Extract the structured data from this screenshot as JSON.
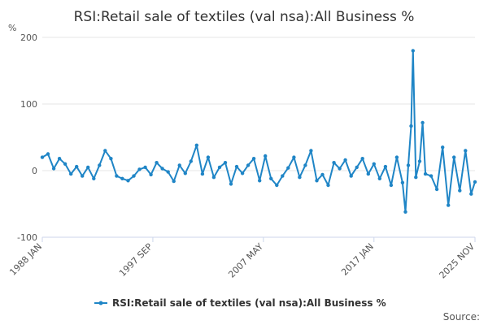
{
  "chart_data": {
    "type": "line",
    "title": "RSI:Retail sale of textiles (val nsa):All Business %",
    "ylabel": "%",
    "xlabel": "",
    "ylim": [
      -100,
      200
    ],
    "yticks": [
      200,
      100,
      0,
      -100
    ],
    "xticks": [
      "1988 JAN",
      "1997 SEP",
      "2007 MAY",
      "2017 JAN",
      "2025 NOV"
    ],
    "xrange": [
      "1988-01",
      "2025-11"
    ],
    "grid": "horizontal",
    "legend_position": "bottom",
    "color": "#1f85c6",
    "series": [
      {
        "name": "RSI:Retail sale of textiles (val nsa):All Business %",
        "x": [
          "1988-01",
          "1988-07",
          "1989-01",
          "1989-07",
          "1990-01",
          "1990-07",
          "1991-01",
          "1991-07",
          "1992-01",
          "1992-07",
          "1993-01",
          "1993-07",
          "1994-01",
          "1994-07",
          "1995-01",
          "1995-07",
          "1996-01",
          "1996-07",
          "1997-01",
          "1997-07",
          "1998-01",
          "1998-07",
          "1999-01",
          "1999-07",
          "2000-01",
          "2000-07",
          "2001-01",
          "2001-07",
          "2002-01",
          "2002-07",
          "2003-01",
          "2003-07",
          "2004-01",
          "2004-07",
          "2005-01",
          "2005-07",
          "2006-01",
          "2006-07",
          "2007-01",
          "2007-07",
          "2008-01",
          "2008-07",
          "2009-01",
          "2009-07",
          "2010-01",
          "2010-07",
          "2011-01",
          "2011-07",
          "2012-01",
          "2012-07",
          "2013-01",
          "2013-07",
          "2014-01",
          "2014-07",
          "2015-01",
          "2015-07",
          "2016-01",
          "2016-07",
          "2017-01",
          "2017-07",
          "2018-01",
          "2018-07",
          "2019-01",
          "2019-07",
          "2019-10",
          "2020-01",
          "2020-04",
          "2020-06",
          "2020-09",
          "2021-01",
          "2021-04",
          "2021-07",
          "2022-01",
          "2022-07",
          "2023-01",
          "2023-07",
          "2024-01",
          "2024-07",
          "2025-01",
          "2025-07",
          "2025-11"
        ],
        "values": [
          20,
          25,
          3,
          18,
          10,
          -5,
          6,
          -8,
          5,
          -12,
          8,
          30,
          18,
          -8,
          -12,
          -15,
          -8,
          2,
          5,
          -6,
          12,
          3,
          -2,
          -16,
          8,
          -4,
          14,
          38,
          -5,
          20,
          -10,
          5,
          12,
          -20,
          6,
          -4,
          8,
          18,
          -15,
          22,
          -12,
          -22,
          -8,
          4,
          20,
          -10,
          8,
          30,
          -15,
          -6,
          -22,
          12,
          3,
          16,
          -8,
          5,
          18,
          -5,
          10,
          -12,
          6,
          -22,
          20,
          -18,
          -62,
          8,
          67,
          180,
          -10,
          14,
          72,
          -5,
          -8,
          -28,
          35,
          -52,
          20,
          -30,
          30,
          -35,
          -17
        ]
      }
    ]
  },
  "legend": {
    "label": "RSI:Retail sale of textiles (val nsa):All Business %"
  },
  "source_label": "Source:"
}
